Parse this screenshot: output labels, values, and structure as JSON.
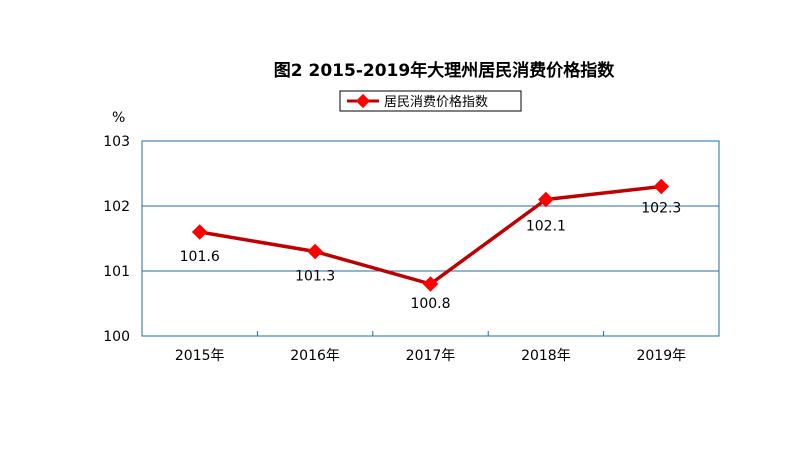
{
  "chart_data": {
    "type": "line",
    "title": "图2  2015-2019年大理州居民消费价格指数",
    "unit_label": "%",
    "categories": [
      "2015年",
      "2016年",
      "2017年",
      "2018年",
      "2019年"
    ],
    "series": [
      {
        "name": "居民消费价格指数",
        "values": [
          101.6,
          101.3,
          100.8,
          102.1,
          102.3
        ],
        "color": "#c00000",
        "marker_color": "#ff0000"
      }
    ],
    "ylim": [
      100,
      103
    ],
    "yticks": [
      100,
      101,
      102,
      103
    ],
    "ytick_labels": [
      "100",
      "101",
      "102",
      "103"
    ],
    "data_labels": [
      "101.6",
      "101.3",
      "100.8",
      "102.1",
      "102.3"
    ],
    "grid": true,
    "legend_position": "top-center",
    "colors": {
      "axis": "#1f6fa6",
      "grid": "#1f6fa6"
    }
  }
}
